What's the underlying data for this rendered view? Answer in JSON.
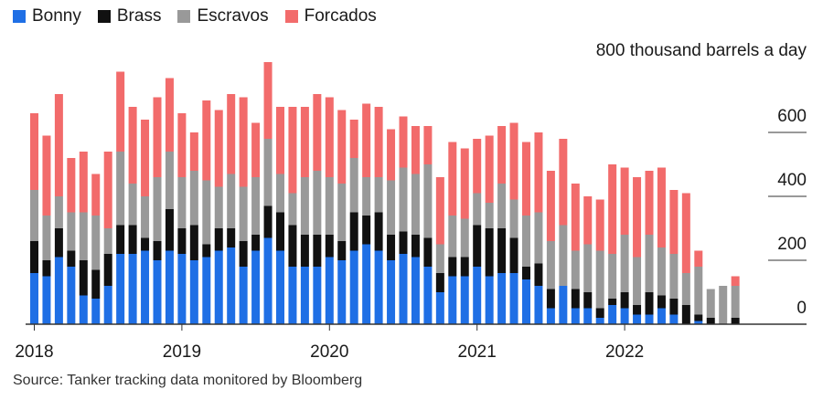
{
  "chart_data": {
    "type": "bar",
    "stacked": true,
    "unit_label": "800 thousand barrels a day",
    "ylim": [
      0,
      800
    ],
    "y_ticks": [
      "0",
      "200",
      "400",
      "600"
    ],
    "y_tick_values": [
      0,
      200,
      400,
      600
    ],
    "x_ticks": [
      "2018",
      "2019",
      "2020",
      "2021",
      "2022"
    ],
    "x_tick_months": [
      0,
      12,
      24,
      36,
      48
    ],
    "months": [
      "2018-01",
      "2018-02",
      "2018-03",
      "2018-04",
      "2018-05",
      "2018-06",
      "2018-07",
      "2018-08",
      "2018-09",
      "2018-10",
      "2018-11",
      "2018-12",
      "2019-01",
      "2019-02",
      "2019-03",
      "2019-04",
      "2019-05",
      "2019-06",
      "2019-07",
      "2019-08",
      "2019-09",
      "2019-10",
      "2019-11",
      "2019-12",
      "2020-01",
      "2020-02",
      "2020-03",
      "2020-04",
      "2020-05",
      "2020-06",
      "2020-07",
      "2020-08",
      "2020-09",
      "2020-10",
      "2020-11",
      "2020-12",
      "2021-01",
      "2021-02",
      "2021-03",
      "2021-04",
      "2021-05",
      "2021-06",
      "2021-07",
      "2021-08",
      "2021-09",
      "2021-10",
      "2021-11",
      "2021-12",
      "2022-01",
      "2022-02",
      "2022-03",
      "2022-04",
      "2022-05",
      "2022-06",
      "2022-07",
      "2022-08",
      "2022-09",
      "2022-10"
    ],
    "series": [
      {
        "name": "Bonny",
        "color": "#1f6fe5",
        "values": [
          160,
          150,
          210,
          180,
          90,
          80,
          120,
          220,
          220,
          230,
          200,
          230,
          220,
          200,
          210,
          230,
          240,
          180,
          230,
          270,
          230,
          180,
          180,
          180,
          210,
          200,
          230,
          250,
          230,
          200,
          220,
          210,
          180,
          100,
          150,
          150,
          180,
          150,
          160,
          160,
          140,
          120,
          50,
          120,
          50,
          50,
          20,
          60,
          50,
          30,
          30,
          50,
          30,
          0,
          10,
          0,
          0,
          0
        ]
      },
      {
        "name": "Brass",
        "color": "#111111",
        "values": [
          100,
          50,
          90,
          50,
          110,
          90,
          100,
          90,
          90,
          40,
          60,
          130,
          80,
          110,
          40,
          70,
          60,
          80,
          50,
          100,
          120,
          130,
          100,
          100,
          70,
          60,
          120,
          90,
          120,
          80,
          70,
          70,
          90,
          60,
          60,
          60,
          130,
          150,
          140,
          110,
          40,
          70,
          60,
          0,
          60,
          50,
          30,
          20,
          50,
          30,
          70,
          40,
          50,
          60,
          20,
          20,
          0,
          20
        ]
      },
      {
        "name": "Escravos",
        "color": "#999999",
        "values": [
          160,
          140,
          100,
          120,
          150,
          170,
          80,
          230,
          130,
          130,
          200,
          180,
          160,
          170,
          200,
          130,
          170,
          170,
          180,
          210,
          120,
          100,
          180,
          200,
          180,
          180,
          170,
          120,
          110,
          170,
          200,
          190,
          230,
          90,
          130,
          120,
          100,
          80,
          140,
          120,
          160,
          160,
          150,
          190,
          120,
          150,
          180,
          140,
          180,
          150,
          180,
          150,
          140,
          100,
          150,
          90,
          120,
          100
        ]
      },
      {
        "name": "Forcados",
        "color": "#f26b6b",
        "values": [
          240,
          250,
          320,
          170,
          190,
          130,
          240,
          250,
          240,
          240,
          250,
          230,
          200,
          120,
          250,
          240,
          250,
          280,
          170,
          240,
          210,
          270,
          220,
          240,
          250,
          230,
          120,
          230,
          220,
          160,
          160,
          150,
          120,
          210,
          230,
          220,
          170,
          210,
          180,
          240,
          230,
          250,
          220,
          270,
          210,
          150,
          160,
          280,
          210,
          250,
          200,
          250,
          200,
          250,
          50,
          0,
          0,
          30
        ]
      }
    ]
  },
  "legend": [
    {
      "label": "Bonny",
      "color": "#1f6fe5"
    },
    {
      "label": "Brass",
      "color": "#111111"
    },
    {
      "label": "Escravos",
      "color": "#999999"
    },
    {
      "label": "Forcados",
      "color": "#f26b6b"
    }
  ],
  "source": "Source: Tanker tracking data monitored by Bloomberg"
}
